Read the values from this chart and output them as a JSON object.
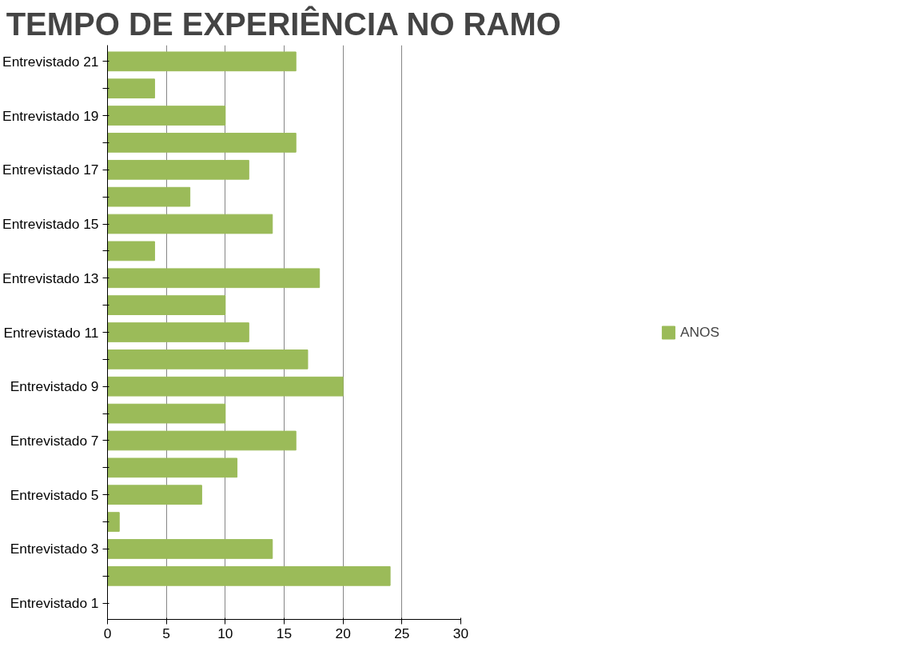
{
  "chart_data": {
    "type": "bar",
    "orientation": "horizontal",
    "title": "TEMPO DE EXPERIÊNCIA NO RAMO",
    "categories": [
      "Entrevistado 21",
      null,
      "Entrevistado 19",
      null,
      "Entrevistado 17",
      null,
      "Entrevistado 15",
      null,
      "Entrevistado 13",
      null,
      "Entrevistado 11",
      null,
      "Entrevistado 9",
      null,
      "Entrevistado 7",
      null,
      "Entrevistado 5",
      null,
      "Entrevistado 3",
      null,
      "Entrevistado 1"
    ],
    "series": [
      {
        "name": "ANOS",
        "color": "#9bbb59",
        "values": [
          16,
          4,
          10,
          16,
          12,
          7,
          14,
          4,
          18,
          10,
          12,
          17,
          20,
          10,
          16,
          11,
          8,
          1,
          14,
          24,
          0
        ]
      }
    ],
    "xlim": [
      0,
      30
    ],
    "xticks": [
      0,
      5,
      10,
      15,
      20,
      25,
      30
    ],
    "grid": "x",
    "legend": "right"
  }
}
